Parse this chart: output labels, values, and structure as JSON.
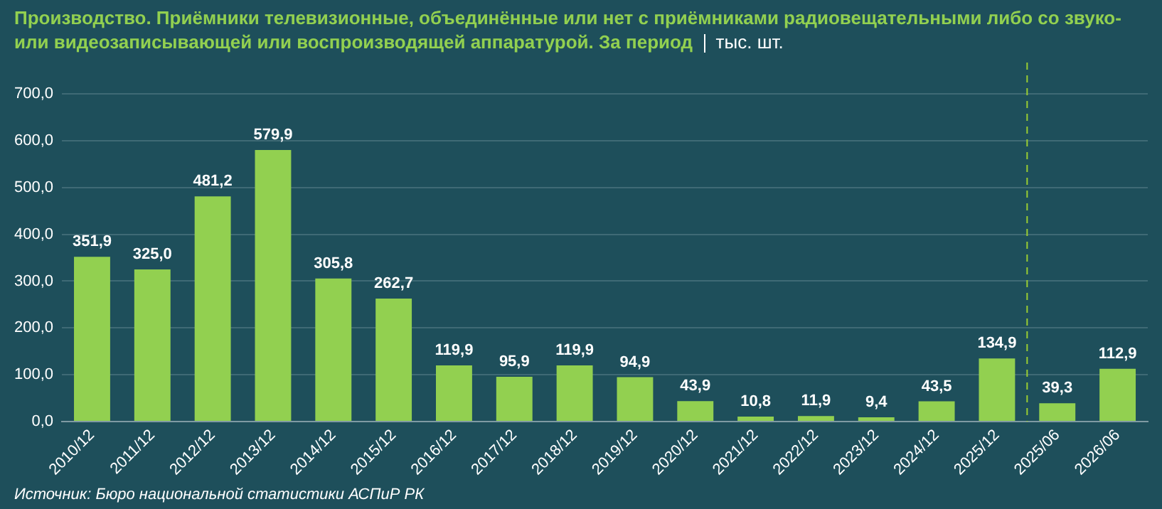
{
  "chart_data": {
    "type": "bar",
    "title": "Производство. Приёмники телевизионные, объединённые или нет с приёмниками радиовещательными либо со звуко- или видеозаписывающей или воспроизводящей аппаратурой. За период",
    "subtitle": "тыс. шт.",
    "categories": [
      "2010/12",
      "2011/12",
      "2012/12",
      "2013/12",
      "2014/12",
      "2015/12",
      "2016/12",
      "2017/12",
      "2018/12",
      "2019/12",
      "2020/12",
      "2021/12",
      "2022/12",
      "2023/12",
      "2024/12",
      "2025/12",
      "2025/06",
      "2026/06"
    ],
    "values": [
      351.9,
      325.0,
      481.2,
      579.9,
      305.8,
      262.7,
      119.9,
      95.9,
      119.9,
      94.9,
      43.9,
      10.8,
      11.9,
      9.4,
      43.5,
      134.9,
      39.3,
      112.9
    ],
    "value_labels": [
      "351,9",
      "325,0",
      "481,2",
      "579,9",
      "305,8",
      "262,7",
      "119,9",
      "95,9",
      "119,9",
      "94,9",
      "43,9",
      "10,8",
      "11,9",
      "9,4",
      "43,5",
      "134,9",
      "39,3",
      "112,9"
    ],
    "color": "#92d050",
    "ylim": [
      0,
      700
    ],
    "yticks": [
      {
        "value": 0,
        "label": "0,0"
      },
      {
        "value": 100,
        "label": "100,0"
      },
      {
        "value": 200,
        "label": "200,0"
      },
      {
        "value": 300,
        "label": "300,0"
      },
      {
        "value": 400,
        "label": "400,0"
      },
      {
        "value": 500,
        "label": "500,0"
      },
      {
        "value": 600,
        "label": "600,0"
      },
      {
        "value": 700,
        "label": "700,0"
      }
    ],
    "grid": "y",
    "ref_lines": [
      {
        "axis": "x",
        "value": "2025/06",
        "color": "#9acd32",
        "line_style": "dashed"
      }
    ],
    "annotations": [
      "Источник: Бюро национальной статистики АСПиР РК"
    ]
  }
}
